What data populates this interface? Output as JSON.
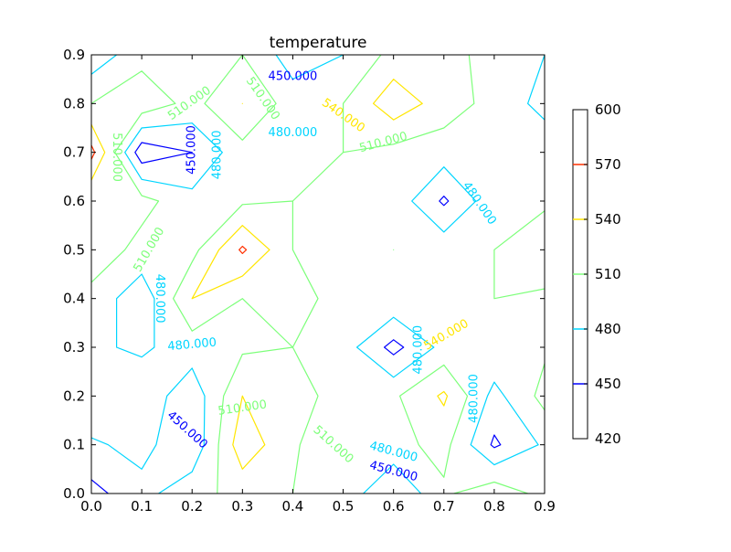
{
  "chart_data": {
    "type": "contour",
    "title": "temperature",
    "xlabel": "",
    "ylabel": "",
    "xlim": [
      0.0,
      0.9
    ],
    "ylim": [
      0.0,
      0.9
    ],
    "x_ticks": [
      "0.0",
      "0.1",
      "0.2",
      "0.3",
      "0.4",
      "0.5",
      "0.6",
      "0.7",
      "0.8",
      "0.9"
    ],
    "y_ticks": [
      "0.0",
      "0.1",
      "0.2",
      "0.3",
      "0.4",
      "0.5",
      "0.6",
      "0.7",
      "0.8",
      "0.9"
    ],
    "grid": false,
    "levels": [
      {
        "value": 420,
        "color": "#000080"
      },
      {
        "value": 450,
        "color": "#0000ff"
      },
      {
        "value": 480,
        "color": "#00d5ff"
      },
      {
        "value": 510,
        "color": "#7dff7a"
      },
      {
        "value": 540,
        "color": "#ffe600"
      },
      {
        "value": 570,
        "color": "#ff3000"
      },
      {
        "value": 600,
        "color": "#800000"
      }
    ],
    "colorbar_ticks": [
      "420",
      "450",
      "480",
      "510",
      "540",
      "570",
      "600"
    ],
    "grid_x": [
      0.0,
      0.1,
      0.2,
      0.3,
      0.4,
      0.5,
      0.6,
      0.7,
      0.8,
      0.9
    ],
    "grid_y": [
      0.0,
      0.1,
      0.2,
      0.3,
      0.4,
      0.5,
      0.6,
      0.7,
      0.8,
      0.9
    ],
    "z": [
      [
        440,
        470,
        500,
        520,
        510,
        500,
        450,
        505,
        530,
        500
      ],
      [
        475,
        490,
        455,
        560,
        515,
        480,
        500,
        520,
        445,
        485
      ],
      [
        510,
        500,
        460,
        540,
        515,
        505,
        505,
        545,
        470,
        520
      ],
      [
        485,
        475,
        495,
        505,
        510,
        495,
        440,
        490,
        505,
        505
      ],
      [
        500,
        460,
        540,
        510,
        515,
        505,
        505,
        500,
        510,
        505
      ],
      [
        530,
        500,
        500,
        575,
        510,
        505,
        510,
        500,
        510,
        530
      ],
      [
        510,
        520,
        490,
        505,
        510,
        505,
        500,
        445,
        500,
        505
      ],
      [
        580,
        430,
        450,
        500,
        505,
        510,
        500,
        495,
        505,
        500
      ],
      [
        510,
        530,
        500,
        540,
        495,
        510,
        560,
        525,
        500,
        470
      ],
      [
        460,
        500,
        500,
        510,
        465,
        480,
        520,
        530,
        490,
        480
      ]
    ],
    "contour_labels": [
      {
        "text": "450.000",
        "x": 0.2,
        "y": 0.705,
        "rotation": -90,
        "color": "#0000ff"
      },
      {
        "text": "480.000",
        "x": 0.25,
        "y": 0.695,
        "rotation": -90,
        "color": "#00d5ff"
      },
      {
        "text": "510.000",
        "x": 0.05,
        "y": 0.69,
        "rotation": 90,
        "color": "#7dff7a"
      },
      {
        "text": "510.000",
        "x": 0.195,
        "y": 0.8,
        "rotation": -35,
        "color": "#7dff7a"
      },
      {
        "text": "450.000",
        "x": 0.4,
        "y": 0.855,
        "rotation": 0,
        "color": "#0000ff"
      },
      {
        "text": "510.000",
        "x": 0.34,
        "y": 0.81,
        "rotation": 55,
        "color": "#7dff7a"
      },
      {
        "text": "480.000",
        "x": 0.4,
        "y": 0.74,
        "rotation": 0,
        "color": "#00d5ff"
      },
      {
        "text": "540.000",
        "x": 0.5,
        "y": 0.775,
        "rotation": 35,
        "color": "#ffe600"
      },
      {
        "text": "510.000",
        "x": 0.58,
        "y": 0.72,
        "rotation": -15,
        "color": "#7dff7a"
      },
      {
        "text": "480.000",
        "x": 0.77,
        "y": 0.595,
        "rotation": 55,
        "color": "#00d5ff"
      },
      {
        "text": "510.000",
        "x": 0.115,
        "y": 0.5,
        "rotation": -60,
        "color": "#7dff7a"
      },
      {
        "text": "480.000",
        "x": 0.135,
        "y": 0.4,
        "rotation": 90,
        "color": "#00d5ff"
      },
      {
        "text": "480.000",
        "x": 0.2,
        "y": 0.305,
        "rotation": -5,
        "color": "#00d5ff"
      },
      {
        "text": "480.000",
        "x": 0.65,
        "y": 0.295,
        "rotation": -90,
        "color": "#00d5ff"
      },
      {
        "text": "540.000",
        "x": 0.705,
        "y": 0.325,
        "rotation": -30,
        "color": "#ffe600"
      },
      {
        "text": "480.000",
        "x": 0.76,
        "y": 0.195,
        "rotation": -90,
        "color": "#00d5ff"
      },
      {
        "text": "450.000",
        "x": 0.19,
        "y": 0.13,
        "rotation": 42,
        "color": "#0000ff"
      },
      {
        "text": "510.000",
        "x": 0.3,
        "y": 0.175,
        "rotation": -8,
        "color": "#7dff7a"
      },
      {
        "text": "510.000",
        "x": 0.48,
        "y": 0.1,
        "rotation": 42,
        "color": "#7dff7a"
      },
      {
        "text": "480.000",
        "x": 0.6,
        "y": 0.085,
        "rotation": 15,
        "color": "#00d5ff"
      },
      {
        "text": "450.000",
        "x": 0.6,
        "y": 0.045,
        "rotation": 15,
        "color": "#0000ff"
      }
    ]
  }
}
